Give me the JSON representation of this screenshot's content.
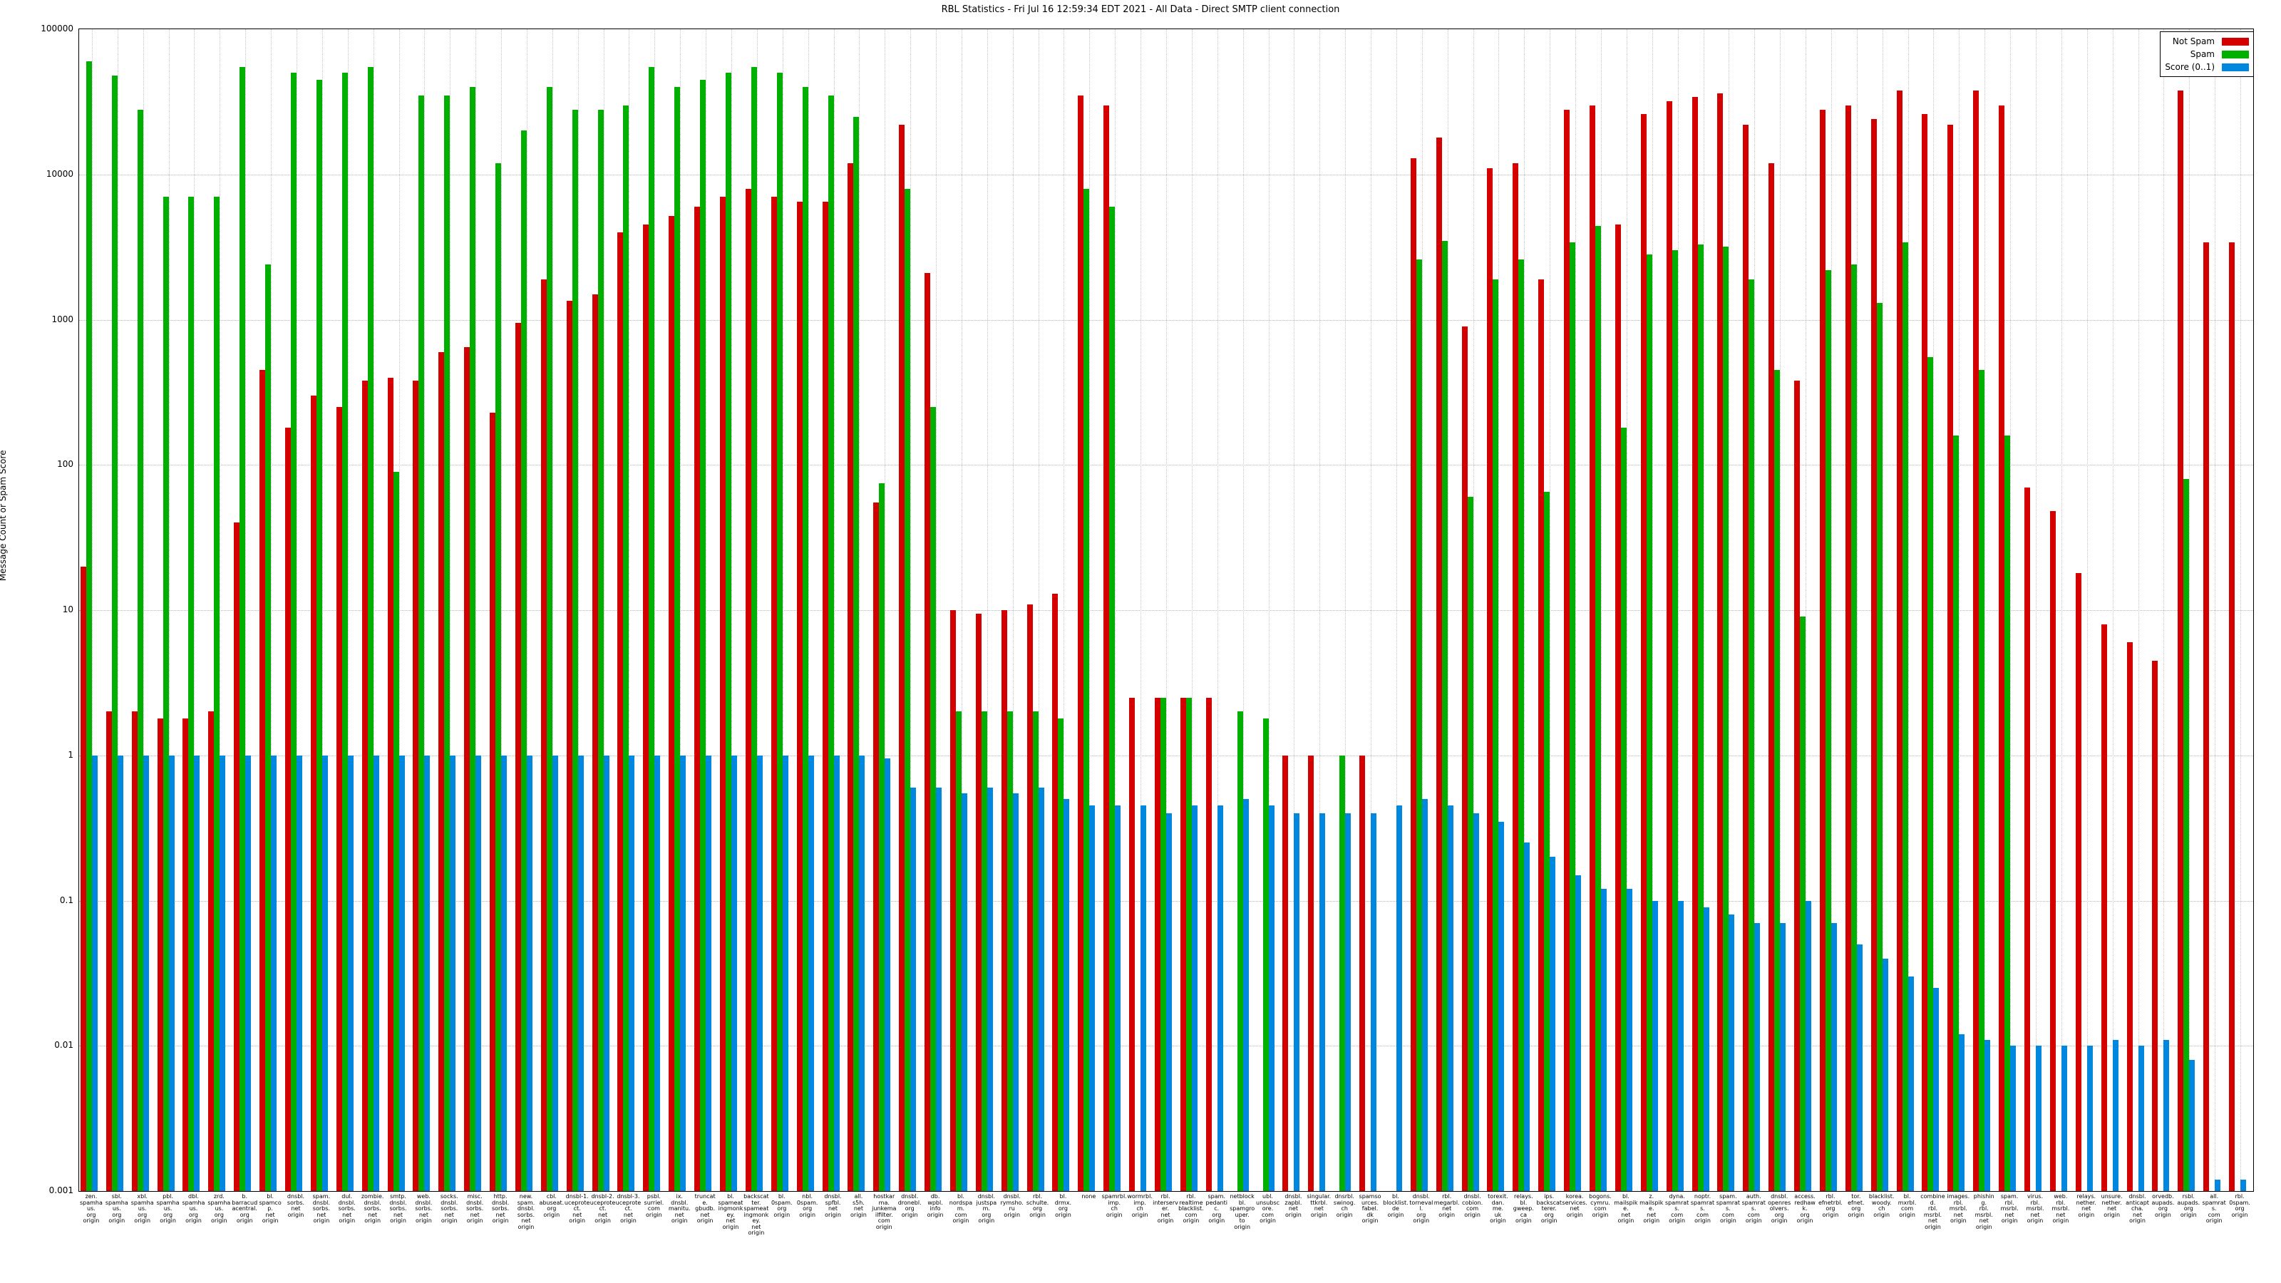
{
  "title": "RBL Statistics - Fri Jul 16 12:59:34 EDT 2021 - All Data - Direct SMTP client connection",
  "y_axis": {
    "label": "Message Count or Spam Score",
    "ticks": [
      {
        "value": 100000,
        "label": "100000"
      },
      {
        "value": 10000,
        "label": "10000"
      },
      {
        "value": 1000,
        "label": "1000"
      },
      {
        "value": 100,
        "label": "100"
      },
      {
        "value": 10,
        "label": "10"
      },
      {
        "value": 1,
        "label": "1"
      },
      {
        "value": 0.1,
        "label": "0.1"
      },
      {
        "value": 0.01,
        "label": "0.01"
      },
      {
        "value": 0.001,
        "label": "0.001"
      }
    ]
  },
  "x_axis": {
    "suffix": "origin"
  },
  "legend": [
    {
      "name": "not-spam",
      "label": "Not Spam",
      "color": "#d40000"
    },
    {
      "name": "spam",
      "label": "Spam",
      "color": "#00b000"
    },
    {
      "name": "score",
      "label": "Score (0..1)",
      "color": "#0087e0"
    }
  ],
  "chart_data": {
    "type": "bar",
    "y_scale": "log",
    "ylim": [
      0.001,
      100000
    ],
    "grid": true,
    "legend_position": "top-right",
    "series_names": [
      "Not Spam",
      "Spam",
      "Score (0..1)"
    ],
    "colors": {
      "not_spam": "#d40000",
      "spam": "#00b000",
      "score": "#0087e0"
    },
    "groups": [
      {
        "label": "zen.spamhaus.org",
        "not_spam": 20,
        "spam": 60000,
        "score": 1
      },
      {
        "label": "sbl.spamhaus.org",
        "not_spam": 2,
        "spam": 48000,
        "score": 1
      },
      {
        "label": "xbl.spamhaus.org",
        "not_spam": 2,
        "spam": 28000,
        "score": 1
      },
      {
        "label": "pbl.spamhaus.org",
        "not_spam": 1.8,
        "spam": 7000,
        "score": 1
      },
      {
        "label": "dbl.spamhaus.org",
        "not_spam": 1.8,
        "spam": 7000,
        "score": 1
      },
      {
        "label": "zrd.spamhaus.org",
        "not_spam": 2,
        "spam": 7000,
        "score": 1
      },
      {
        "label": "b.barracudacentral.org",
        "not_spam": 40,
        "spam": 55000,
        "score": 1
      },
      {
        "label": "bl.spamcop.net",
        "not_spam": 450,
        "spam": 2400,
        "score": 1
      },
      {
        "label": "dnsbl.sorbs.net",
        "not_spam": 180,
        "spam": 50000,
        "score": 1
      },
      {
        "label": "spam.dnsbl.sorbs.net",
        "not_spam": 300,
        "spam": 45000,
        "score": 1
      },
      {
        "label": "dul.dnsbl.sorbs.net",
        "not_spam": 250,
        "spam": 50000,
        "score": 1
      },
      {
        "label": "zombie.dnsbl.sorbs.net",
        "not_spam": 380,
        "spam": 55000,
        "score": 1
      },
      {
        "label": "smtp.dnsbl.sorbs.net",
        "not_spam": 400,
        "spam": 90,
        "score": 1
      },
      {
        "label": "web.dnsbl.sorbs.net",
        "not_spam": 380,
        "spam": 35000,
        "score": 1
      },
      {
        "label": "socks.dnsbl.sorbs.net",
        "not_spam": 600,
        "spam": 35000,
        "score": 1
      },
      {
        "label": "misc.dnsbl.sorbs.net",
        "not_spam": 650,
        "spam": 40000,
        "score": 1
      },
      {
        "label": "http.dnsbl.sorbs.net",
        "not_spam": 230,
        "spam": 12000,
        "score": 1
      },
      {
        "label": "new.spam.dnsbl.sorbs.net",
        "not_spam": 950,
        "spam": 20000,
        "score": 1
      },
      {
        "label": "cbl.abuseat.org",
        "not_spam": 1900,
        "spam": 40000,
        "score": 1
      },
      {
        "label": "dnsbl-1.uceprotect.net",
        "not_spam": 1350,
        "spam": 28000,
        "score": 1
      },
      {
        "label": "dnsbl-2.uceprotect.net",
        "not_spam": 1500,
        "spam": 28000,
        "score": 1
      },
      {
        "label": "dnsbl-3.uceprotect.net",
        "not_spam": 4000,
        "spam": 30000,
        "score": 1
      },
      {
        "label": "psbl.surriel.com",
        "not_spam": 4500,
        "spam": 55000,
        "score": 1
      },
      {
        "label": "ix.dnsbl.manitu.net",
        "not_spam": 5200,
        "spam": 40000,
        "score": 1
      },
      {
        "label": "truncate.gbudb.net",
        "not_spam": 6000,
        "spam": 45000,
        "score": 1
      },
      {
        "label": "bl.spameatingmonkey.net",
        "not_spam": 7000,
        "spam": 50000,
        "score": 1
      },
      {
        "label": "backscatter.spameatingmonkey.net",
        "not_spam": 8000,
        "spam": 55000,
        "score": 1
      },
      {
        "label": "bl.0spam.org",
        "not_spam": 7000,
        "spam": 50000,
        "score": 1
      },
      {
        "label": "nbl.0spam.org",
        "not_spam": 6500,
        "spam": 40000,
        "score": 1
      },
      {
        "label": "dnsbl.spfbl.net",
        "not_spam": 6500,
        "spam": 35000,
        "score": 1
      },
      {
        "label": "all.s5h.net",
        "not_spam": 12000,
        "spam": 25000,
        "score": 1
      },
      {
        "label": "hostkarma.junkemailfilter.com",
        "not_spam": 55,
        "spam": 75,
        "score": 0.95
      },
      {
        "label": "dnsbl.dronebl.org",
        "not_spam": 22000,
        "spam": 8000,
        "score": 0.6
      },
      {
        "label": "db.wpbl.info",
        "not_spam": 2100,
        "spam": 250,
        "score": 0.6
      },
      {
        "label": "bl.nordspam.com",
        "not_spam": 10,
        "spam": 2,
        "score": 0.55
      },
      {
        "label": "dnsbl.justspam.org",
        "not_spam": 9.5,
        "spam": 2,
        "score": 0.6
      },
      {
        "label": "dnsbl.rymsho.ru",
        "not_spam": 10,
        "spam": 2,
        "score": 0.55
      },
      {
        "label": "rbl.schulte.org",
        "not_spam": 11,
        "spam": 2,
        "score": 0.6
      },
      {
        "label": "bl.drmx.org",
        "not_spam": 13,
        "spam": 1.8,
        "score": 0.5
      },
      {
        "label": "none",
        "not_spam": 35000,
        "spam": 8000,
        "score": 0.45
      },
      {
        "label": "spamrbl.imp.ch",
        "not_spam": 30000,
        "spam": 6000,
        "score": 0.45
      },
      {
        "label": "wormrbl.imp.ch",
        "not_spam": 2.5,
        "spam": null,
        "score": 0.45
      },
      {
        "label": "rbl.interserver.net",
        "not_spam": 2.5,
        "spam": 2.5,
        "score": 0.4
      },
      {
        "label": "rbl.realtimeblacklist.com",
        "not_spam": 2.5,
        "spam": 2.5,
        "score": 0.45
      },
      {
        "label": "spam.pedantic.org",
        "not_spam": 2.5,
        "spam": null,
        "score": 0.45
      },
      {
        "label": "netblockbl.spamgrouper.to",
        "not_spam": null,
        "spam": 2,
        "score": 0.5
      },
      {
        "label": "ubl.unsubscore.com",
        "not_spam": null,
        "spam": 1.8,
        "score": 0.45
      },
      {
        "label": "dnsbl.zapbl.net",
        "not_spam": 1,
        "spam": null,
        "score": 0.4
      },
      {
        "label": "singular.ttkrbl.net",
        "not_spam": 1,
        "spam": null,
        "score": 0.4
      },
      {
        "label": "dnsrbl.swinog.ch",
        "not_spam": null,
        "spam": 1,
        "score": 0.4
      },
      {
        "label": "spamsources.fabel.dk",
        "not_spam": 1,
        "spam": null,
        "score": 0.4
      },
      {
        "label": "bl.blocklist.de",
        "not_spam": null,
        "spam": null,
        "score": 0.45
      },
      {
        "label": "dnsbl.tornevall.org",
        "not_spam": 13000,
        "spam": 2600,
        "score": 0.5
      },
      {
        "label": "rbl.megarbl.net",
        "not_spam": 18000,
        "spam": 3500,
        "score": 0.45
      },
      {
        "label": "dnsbl.cobion.com",
        "not_spam": 900,
        "spam": 60,
        "score": 0.4
      },
      {
        "label": "torexit.dan.me.uk",
        "not_spam": 11000,
        "spam": 1900,
        "score": 0.35
      },
      {
        "label": "relays.bl.gweep.ca",
        "not_spam": 12000,
        "spam": 2600,
        "score": 0.25
      },
      {
        "label": "ips.backscatterer.org",
        "not_spam": 1900,
        "spam": 65,
        "score": 0.2
      },
      {
        "label": "korea.services.net",
        "not_spam": 28000,
        "spam": 3400,
        "score": 0.15
      },
      {
        "label": "bogons.cymru.com",
        "not_spam": 30000,
        "spam": 4400,
        "score": 0.12
      },
      {
        "label": "bl.mailspike.net",
        "not_spam": 4500,
        "spam": 180,
        "score": 0.12
      },
      {
        "label": "z.mailspike.net",
        "not_spam": 26000,
        "spam": 2800,
        "score": 0.1
      },
      {
        "label": "dyna.spamrats.com",
        "not_spam": 32000,
        "spam": 3000,
        "score": 0.1
      },
      {
        "label": "noptr.spamrats.com",
        "not_spam": 34000,
        "spam": 3300,
        "score": 0.09
      },
      {
        "label": "spam.spamrats.com",
        "not_spam": 36000,
        "spam": 3200,
        "score": 0.08
      },
      {
        "label": "auth.spamrats.com",
        "not_spam": 22000,
        "spam": 1900,
        "score": 0.07
      },
      {
        "label": "dnsbl.openresolvers.org",
        "not_spam": 12000,
        "spam": 450,
        "score": 0.07
      },
      {
        "label": "access.redhawk.org",
        "not_spam": 380,
        "spam": 9,
        "score": 0.1
      },
      {
        "label": "rbl.efnetrbl.org",
        "not_spam": 28000,
        "spam": 2200,
        "score": 0.07
      },
      {
        "label": "tor.efnet.org",
        "not_spam": 30000,
        "spam": 2400,
        "score": 0.05
      },
      {
        "label": "blacklist.woody.ch",
        "not_spam": 24000,
        "spam": 1300,
        "score": 0.04
      },
      {
        "label": "bl.mxrbl.com",
        "not_spam": 38000,
        "spam": 3400,
        "score": 0.03
      },
      {
        "label": "combined.rbl.msrbl.net",
        "not_spam": 26000,
        "spam": 550,
        "score": 0.025
      },
      {
        "label": "images.rbl.msrbl.net",
        "not_spam": 22000,
        "spam": 160,
        "score": 0.012
      },
      {
        "label": "phishing.rbl.msrbl.net",
        "not_spam": 38000,
        "spam": 450,
        "score": 0.011
      },
      {
        "label": "spam.rbl.msrbl.net",
        "not_spam": 30000,
        "spam": 160,
        "score": 0.01
      },
      {
        "label": "virus.rbl.msrbl.net",
        "not_spam": 70,
        "spam": null,
        "score": 0.01
      },
      {
        "label": "web.rbl.msrbl.net",
        "not_spam": 48,
        "spam": null,
        "score": 0.01
      },
      {
        "label": "relays.nether.net",
        "not_spam": 18,
        "spam": null,
        "score": 0.01
      },
      {
        "label": "unsure.nether.net",
        "not_spam": 8,
        "spam": null,
        "score": 0.011
      },
      {
        "label": "dnsbl.anticaptcha.net",
        "not_spam": 6,
        "spam": null,
        "score": 0.01
      },
      {
        "label": "orvedb.aupads.org",
        "not_spam": 4.5,
        "spam": null,
        "score": 0.011
      },
      {
        "label": "rsbl.aupads.org",
        "not_spam": 38000,
        "spam": 80,
        "score": 0.008
      },
      {
        "label": "all.spamrats.com",
        "not_spam": 3400,
        "spam": null,
        "score": 0.0012
      },
      {
        "label": "rbl.0spam.org",
        "not_spam": 3400,
        "spam": null,
        "score": 0.0012
      }
    ]
  }
}
